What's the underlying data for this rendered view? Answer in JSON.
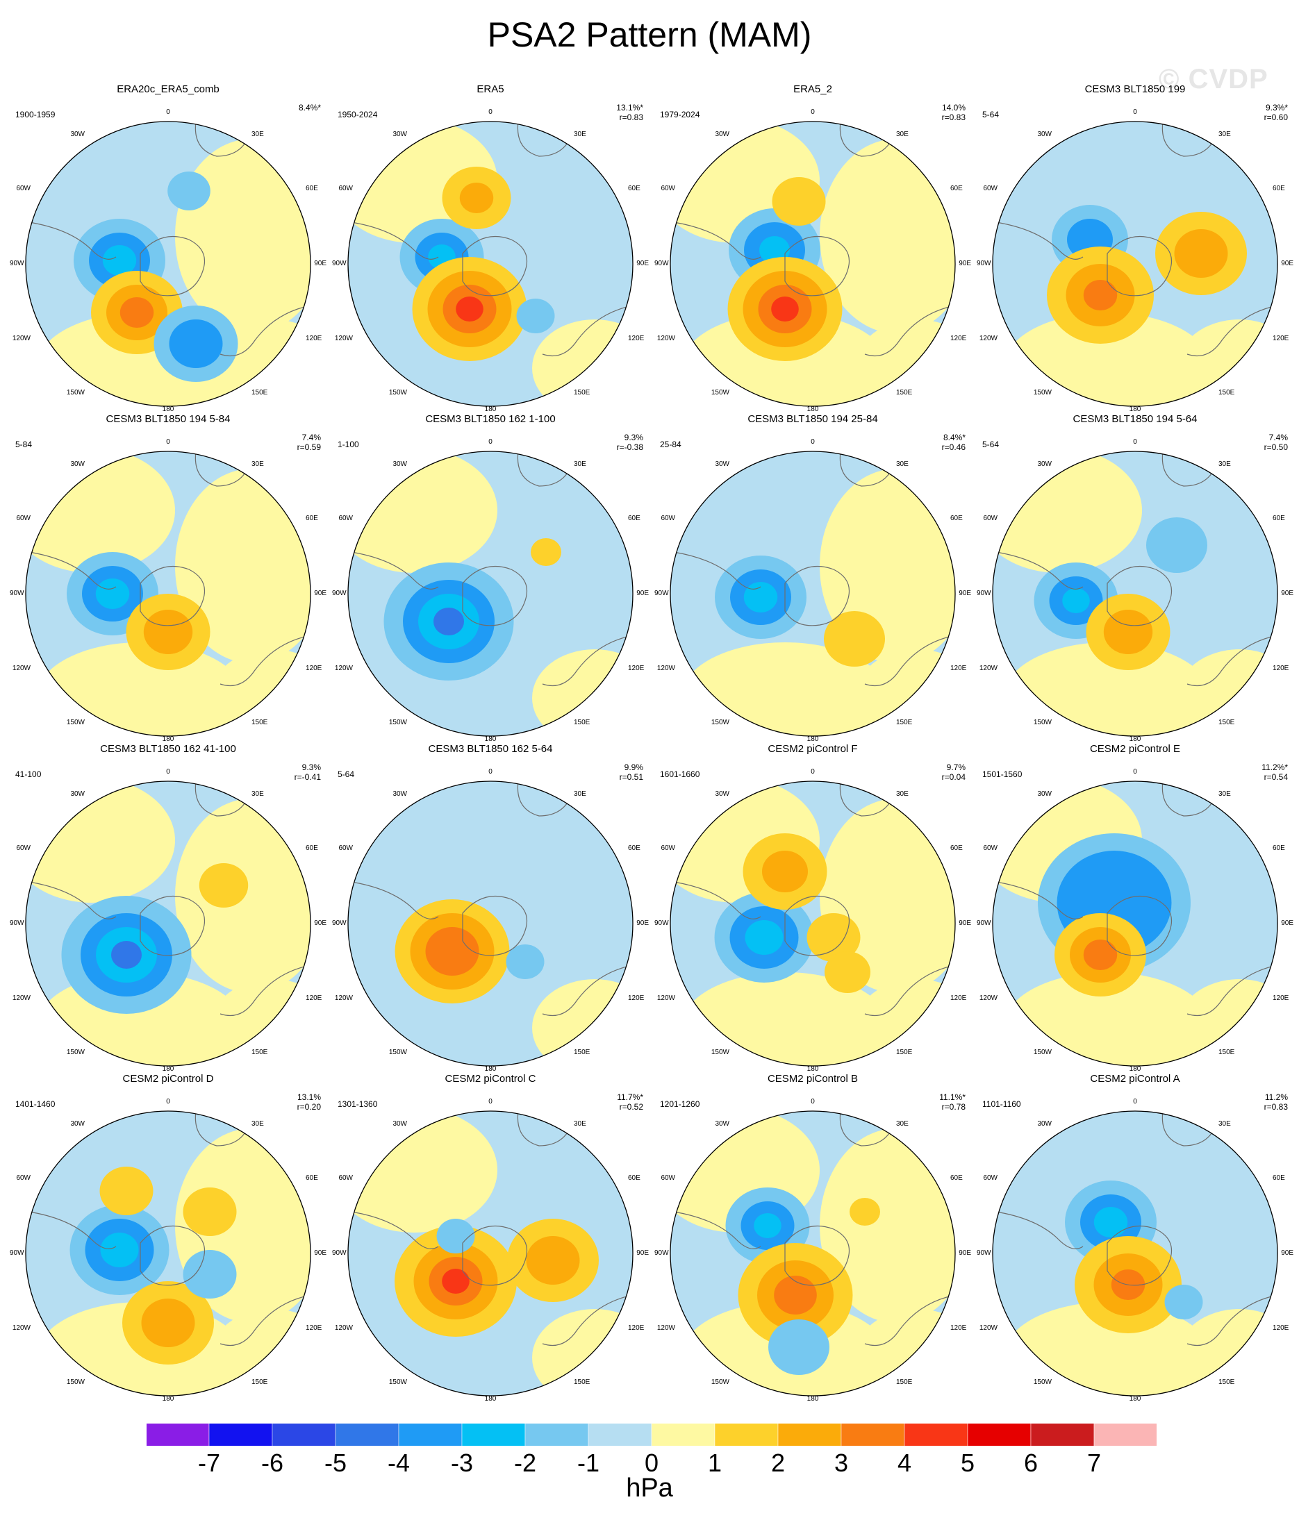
{
  "title": "PSA2 Pattern (MAM)",
  "watermark": "© CVDP",
  "lon_labels": {
    "top": "0",
    "bottom": "180",
    "upper_left": "30W",
    "upper_right": "30E",
    "mid_upper_left": "60W",
    "mid_upper_right": "60E",
    "left": "90W",
    "right": "90E",
    "mid_lower_left": "120W",
    "mid_lower_right": "120E",
    "lower_left": "150W",
    "lower_right": "150E"
  },
  "colors": {
    "ocean_pos": "#fef9a2",
    "ocean_neg": "#b6def2",
    "coast": "#6e6e6e",
    "border": "#000000"
  },
  "panels": [
    {
      "title": "ERA20c_ERA5_comb",
      "years": "1900-1959",
      "pct": "8.4%*",
      "r": ""
    },
    {
      "title": "ERA5",
      "years": "1950-2024",
      "pct": "13.1%*",
      "r": "r=0.83"
    },
    {
      "title": "ERA5_2",
      "years": "1979-2024",
      "pct": "14.0%",
      "r": "r=0.83"
    },
    {
      "title": "CESM3 BLT1850 199",
      "years": "5-64",
      "pct": "9.3%*",
      "r": "r=0.60"
    },
    {
      "title": "CESM3 BLT1850 194 5-84",
      "years": "5-84",
      "pct": "7.4%",
      "r": "r=0.59"
    },
    {
      "title": "CESM3 BLT1850 162 1-100",
      "years": "1-100",
      "pct": "9.3%",
      "r": "r=-0.38"
    },
    {
      "title": "CESM3 BLT1850 194 25-84",
      "years": "25-84",
      "pct": "8.4%*",
      "r": "r=0.46"
    },
    {
      "title": "CESM3 BLT1850 194 5-64",
      "years": "5-64",
      "pct": "7.4%",
      "r": "r=0.50"
    },
    {
      "title": "CESM3 BLT1850 162 41-100",
      "years": "41-100",
      "pct": "9.3%",
      "r": "r=-0.41"
    },
    {
      "title": "CESM3 BLT1850 162 5-64",
      "years": "5-64",
      "pct": "9.9%",
      "r": "r=0.51"
    },
    {
      "title": "CESM2 piControl F",
      "years": "1601-1660",
      "pct": "9.7%",
      "r": "r=0.04"
    },
    {
      "title": "CESM2 piControl E",
      "years": "1501-1560",
      "pct": "11.2%*",
      "r": "r=0.54"
    },
    {
      "title": "CESM2 piControl D",
      "years": "1401-1460",
      "pct": "13.1%",
      "r": "r=0.20"
    },
    {
      "title": "CESM2 piControl C",
      "years": "1301-1360",
      "pct": "11.7%*",
      "r": "r=0.52"
    },
    {
      "title": "CESM2 piControl B",
      "years": "1201-1260",
      "pct": "11.1%*",
      "r": "r=0.78"
    },
    {
      "title": "CESM2 piControl A",
      "years": "1101-1160",
      "pct": "11.2%",
      "r": "r=0.83"
    }
  ],
  "colorbar": {
    "ticks": [
      "-7",
      "-6",
      "-5",
      "-4",
      "-3",
      "-2",
      "-1",
      "0",
      "1",
      "2",
      "3",
      "4",
      "5",
      "6",
      "7"
    ],
    "units": "hPa",
    "colors": [
      "#8a1de6",
      "#1212f0",
      "#2b47e6",
      "#3077e8",
      "#1f9bf5",
      "#04c0f4",
      "#76c8f0",
      "#b6def2",
      "#fef9a2",
      "#fdd12b",
      "#fbab0a",
      "#f97c12",
      "#f93616",
      "#e60000",
      "#cb1c1e",
      "#fbb5b5"
    ]
  }
}
